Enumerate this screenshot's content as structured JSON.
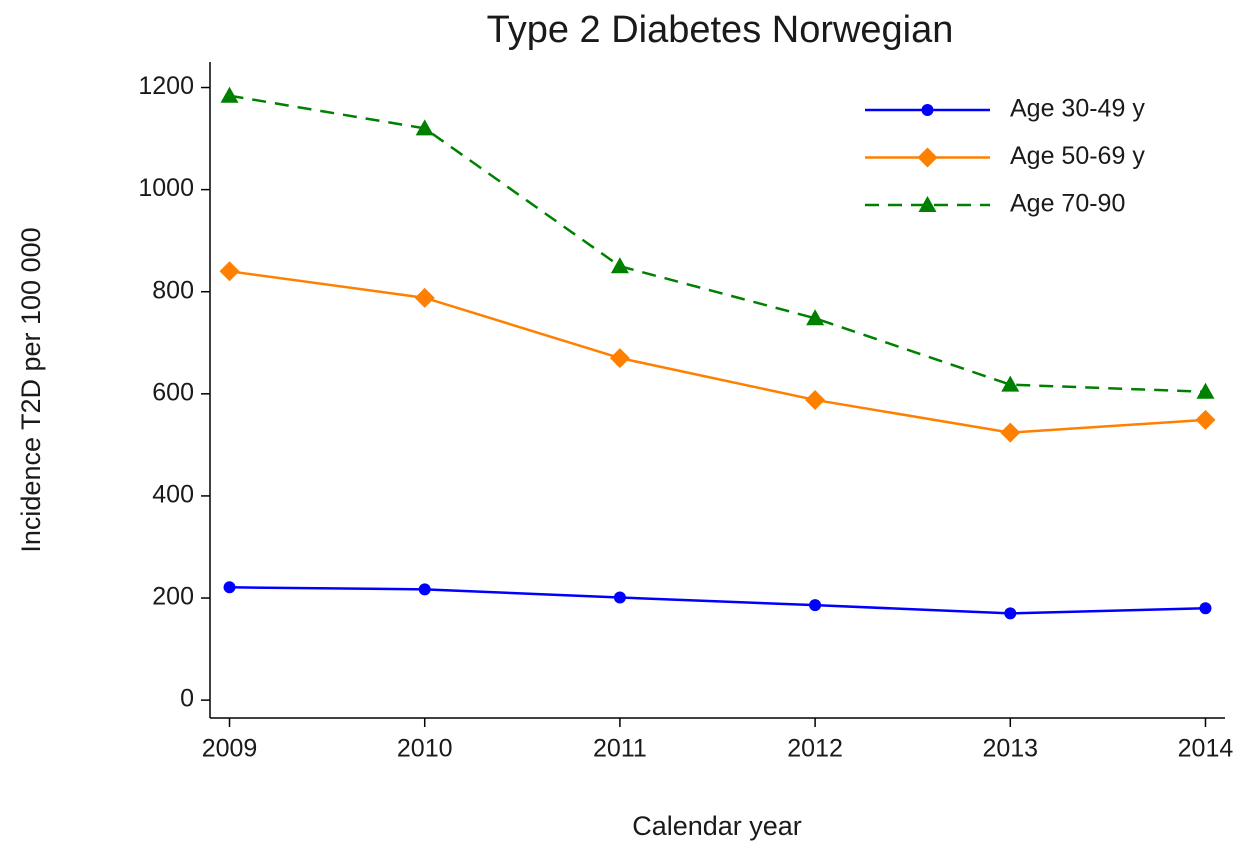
{
  "chart_data": {
    "type": "line",
    "title": "Type 2 Diabetes Norwegian",
    "x_label": "Calendar year",
    "y_label": "Incidence T2D per 100 000",
    "x": [
      2009,
      2010,
      2011,
      2012,
      2013,
      2014
    ],
    "xlim": [
      2008.9,
      2014.1
    ],
    "xticks": [
      2009,
      2010,
      2011,
      2012,
      2013,
      2014
    ],
    "ylim": [
      -35,
      1250
    ],
    "yticks": [
      0,
      200,
      400,
      600,
      800,
      1000,
      1200
    ],
    "grid": false,
    "legend": "top-right",
    "series": [
      {
        "name": "Age 30-49 y",
        "color": "#0000ff",
        "marker": "circle",
        "dash": false,
        "values": [
          221,
          217,
          201,
          186,
          170,
          180
        ]
      },
      {
        "name": "Age 50-69 y",
        "color": "#ff8000",
        "marker": "diamond",
        "dash": false,
        "values": [
          840,
          788,
          670,
          588,
          524,
          549
        ]
      },
      {
        "name": "Age 70-90",
        "color": "#008000",
        "marker": "triangle",
        "dash": true,
        "values": [
          1184,
          1120,
          850,
          748,
          618,
          604
        ]
      }
    ]
  }
}
